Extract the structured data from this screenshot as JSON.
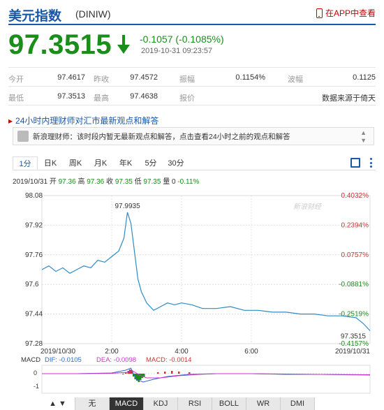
{
  "header": {
    "title": "美元指数",
    "code": "(DINIW)",
    "app_link": "在APP中查看"
  },
  "quote": {
    "price": "97.3515",
    "change": "-0.1057 (-0.1085%)",
    "time": "2019-10-31 09:23:57"
  },
  "stats": {
    "row1": [
      {
        "label": "今开",
        "value": "97.4617"
      },
      {
        "label": "昨收",
        "value": "97.4572"
      },
      {
        "label": "振幅",
        "value": "0.1154%"
      },
      {
        "label": "波幅",
        "value": "0.1125"
      }
    ],
    "row2": [
      {
        "label": "最低",
        "value": "97.3513"
      },
      {
        "label": "最高",
        "value": "97.4638"
      },
      {
        "label": "报价",
        "value": ""
      },
      {
        "label": "",
        "value": "数据来源于倚天"
      }
    ]
  },
  "news": {
    "header": "24小时内理财师对汇市最新观点和解答",
    "text": "新浪理财师：该时段内暂无最新观点和解答，点击查看24小时之前的观点和解答"
  },
  "tabs": [
    "1分",
    "日K",
    "周K",
    "月K",
    "年K",
    "5分",
    "30分"
  ],
  "chart_info": {
    "date": "2019/10/31",
    "open_label": "开",
    "open": "97.36",
    "high_label": "高",
    "high": "97.36",
    "close_label": "收",
    "close": "97.35",
    "low_label": "低",
    "low": "97.35",
    "vol_label": "量",
    "vol": "0",
    "pct": "-0.11%"
  },
  "watermark": "新浪财经",
  "chart_data": {
    "type": "line",
    "title": "",
    "y_labels": [
      "98.08",
      "97.92",
      "97.76",
      "97.6",
      "97.44",
      "97.28"
    ],
    "y_range": [
      97.28,
      98.08
    ],
    "pct_labels": [
      "0.4032%",
      "0.2394%",
      "0.0757%",
      "-0.0881%",
      "-0.2519%",
      "-0.4157%"
    ],
    "x_labels": [
      "2019/10/30",
      "2:00",
      "4:00",
      "6:00",
      "2019/10/31"
    ],
    "x_hours": [
      0,
      2,
      4,
      6,
      9.4
    ],
    "peak_label": "97.9935",
    "last_label": "97.3515",
    "series": [
      {
        "x": [
          0,
          0.2,
          0.4,
          0.6,
          0.8,
          1.0,
          1.2,
          1.4,
          1.6,
          1.8,
          2.0,
          2.2,
          2.35,
          2.45,
          2.55,
          2.65,
          2.75,
          2.85,
          3.0,
          3.2,
          3.4,
          3.6,
          3.8,
          4.0,
          4.3,
          4.6,
          5.0,
          5.4,
          5.8,
          6.2,
          6.6,
          7.0,
          7.4,
          7.8,
          8.2,
          8.6,
          9.0,
          9.2,
          9.4
        ],
        "y": [
          97.68,
          97.7,
          97.67,
          97.69,
          97.66,
          97.68,
          97.7,
          97.69,
          97.73,
          97.72,
          97.75,
          97.78,
          97.85,
          97.99,
          97.93,
          97.78,
          97.63,
          97.56,
          97.5,
          97.46,
          97.48,
          97.5,
          97.49,
          97.5,
          97.49,
          97.47,
          97.47,
          97.48,
          97.46,
          97.46,
          97.45,
          97.45,
          97.44,
          97.44,
          97.43,
          97.43,
          97.42,
          97.39,
          97.35
        ]
      }
    ]
  },
  "macd": {
    "label": "MACD",
    "dif": "DIF: -0.0105",
    "dea": "DEA: -0.0098",
    "macd": "MACD: -0.0014",
    "y_labels": [
      "0",
      "-1"
    ],
    "dif_color": "#3366cc",
    "dea_color": "#cc33cc",
    "macd_color": "#cc3333"
  },
  "bottom_tabs": [
    "无",
    "MACD",
    "KDJ",
    "RSI",
    "BOLL",
    "WR",
    "DMI"
  ],
  "colors": {
    "brand": "#1a57a6",
    "down": "#1a8d1a",
    "up": "#cc3333",
    "line": "#2b8cc4"
  }
}
